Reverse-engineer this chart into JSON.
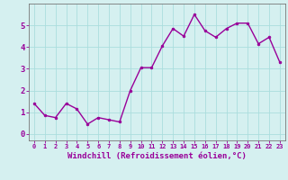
{
  "x": [
    0,
    1,
    2,
    3,
    4,
    5,
    6,
    7,
    8,
    9,
    10,
    11,
    12,
    13,
    14,
    15,
    16,
    17,
    18,
    19,
    20,
    21,
    22,
    23
  ],
  "y": [
    1.4,
    0.85,
    0.75,
    1.4,
    1.15,
    0.45,
    0.75,
    0.65,
    0.55,
    2.0,
    3.05,
    3.05,
    4.05,
    4.85,
    4.5,
    5.5,
    4.75,
    4.45,
    4.85,
    5.1,
    5.1,
    4.15,
    4.45,
    3.3
  ],
  "line_color": "#990099",
  "marker": "o",
  "markersize": 2.0,
  "linewidth": 1.0,
  "xlabel": "Windchill (Refroidissement éolien,°C)",
  "xlabel_fontsize": 6.5,
  "bg_color": "#d5f0f0",
  "grid_color": "#aadddd",
  "tick_color": "#990099",
  "spine_color": "#777777",
  "xlim": [
    -0.5,
    23.5
  ],
  "ylim": [
    -0.3,
    6.0
  ],
  "yticks": [
    0,
    1,
    2,
    3,
    4,
    5
  ],
  "xticks": [
    0,
    1,
    2,
    3,
    4,
    5,
    6,
    7,
    8,
    9,
    10,
    11,
    12,
    13,
    14,
    15,
    16,
    17,
    18,
    19,
    20,
    21,
    22,
    23
  ],
  "xtick_fontsize": 5.0,
  "ytick_fontsize": 6.5
}
